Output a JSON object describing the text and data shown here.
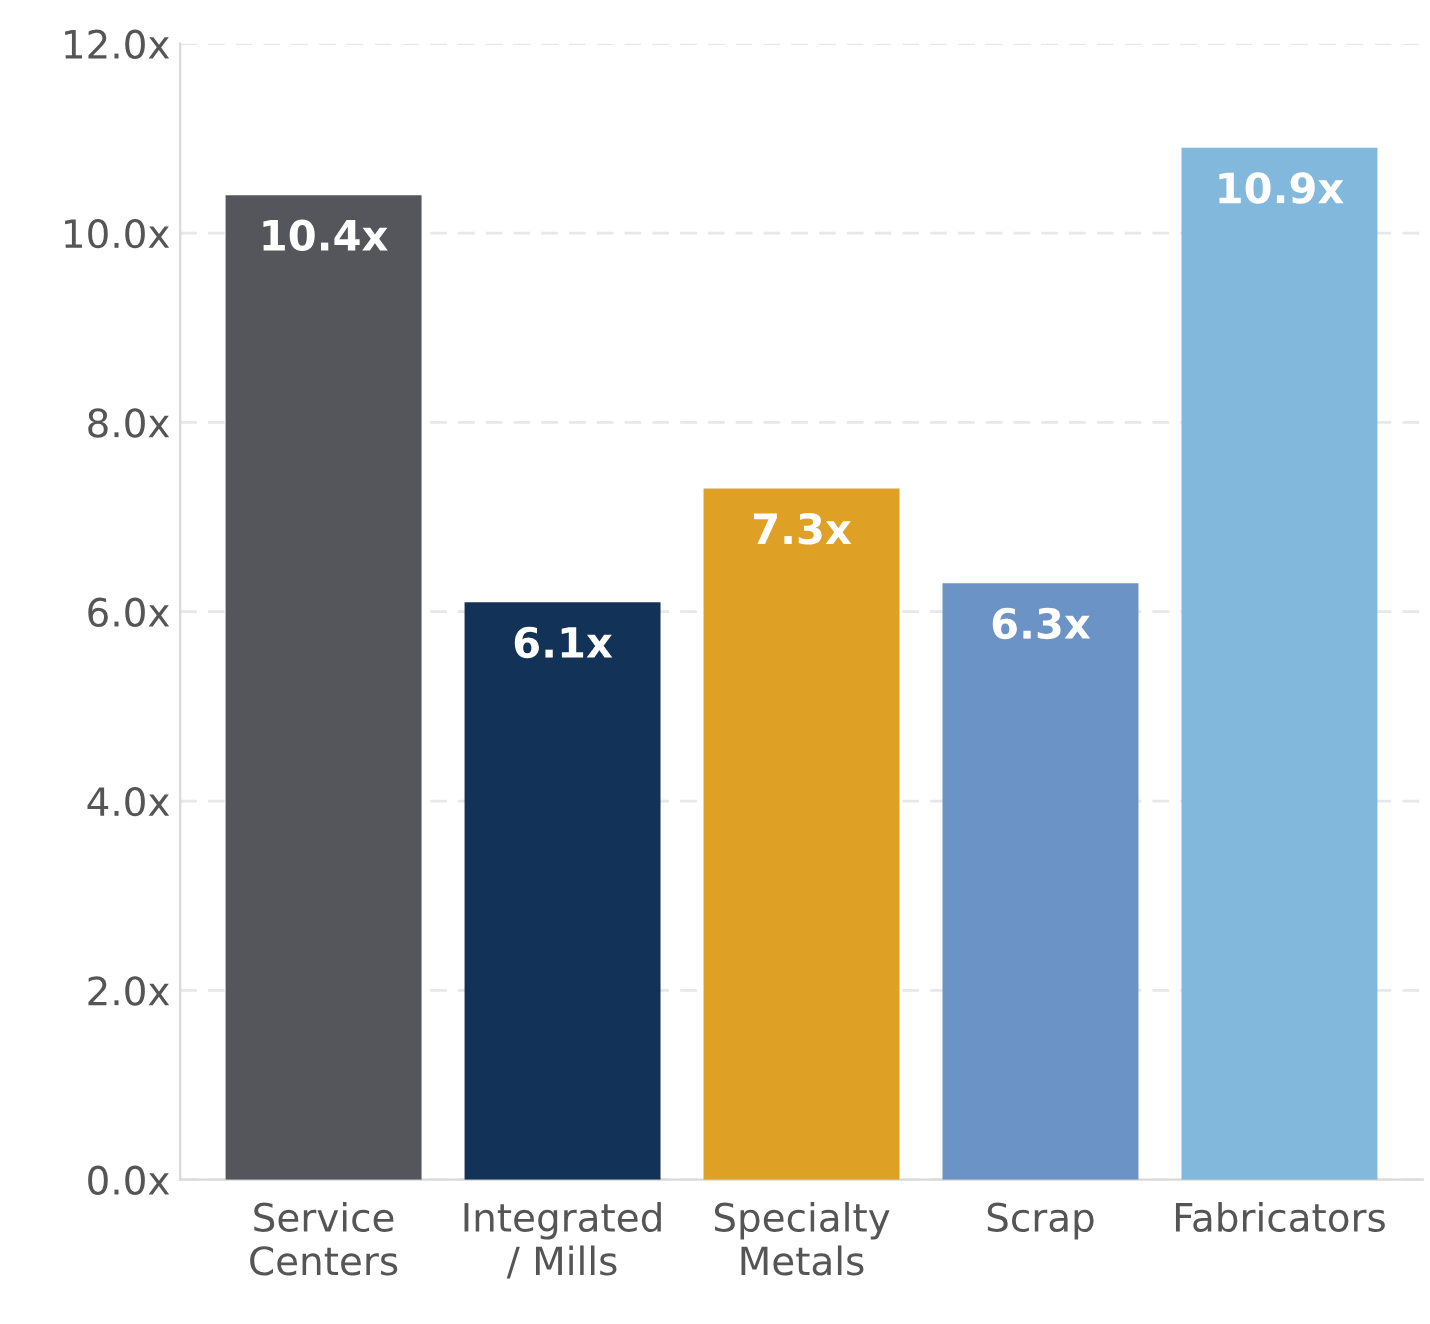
{
  "chart_data": {
    "type": "bar",
    "categories": [
      "Service\nCenters",
      "Integrated\n/ Mills",
      "Specialty\nMetals",
      "Scrap",
      "Fabricators"
    ],
    "values": [
      10.4,
      6.1,
      7.3,
      6.3,
      10.9
    ],
    "colors": [
      "#54565b",
      "#133257",
      "#dea126",
      "#6b93c6",
      "#82b8db"
    ],
    "value_labels": [
      "10.4x",
      "6.1x",
      "7.3x",
      "6.3x",
      "10.9x"
    ],
    "ylim": [
      0,
      12
    ],
    "yticks": [
      {
        "value": 0,
        "label": "0.0x"
      },
      {
        "value": 2,
        "label": "2.0x"
      },
      {
        "value": 4,
        "label": "4.0x"
      },
      {
        "value": 6,
        "label": "6.0x"
      },
      {
        "value": 8,
        "label": "8.0x"
      },
      {
        "value": 10,
        "label": "10.0x"
      },
      {
        "value": 12,
        "label": "12.0x"
      }
    ],
    "grid": "y",
    "legend": false
  }
}
